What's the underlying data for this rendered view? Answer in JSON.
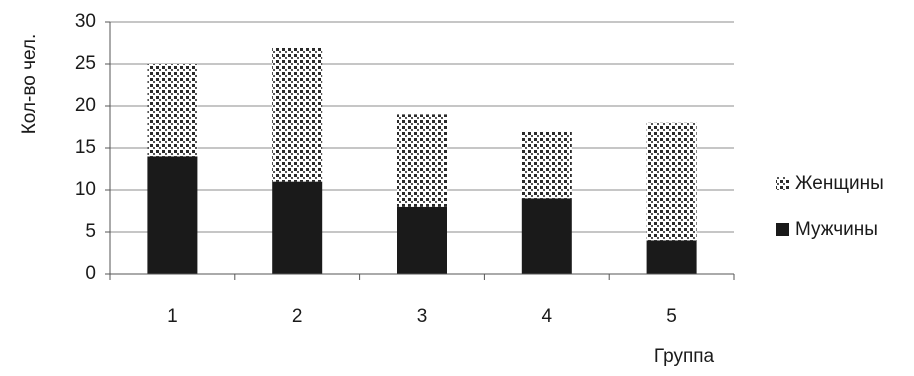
{
  "chart_data": {
    "type": "bar",
    "stacked": true,
    "categories": [
      "1",
      "2",
      "3",
      "4",
      "5"
    ],
    "series": [
      {
        "name": "Мужчины",
        "values": [
          14,
          11,
          8,
          9,
          4
        ],
        "color": "#1a1a1a",
        "fill": "solid"
      },
      {
        "name": "Женщины",
        "values": [
          11,
          16,
          11,
          8,
          14
        ],
        "color": "#1a1a1a",
        "fill": "dotted"
      }
    ],
    "title": "",
    "xlabel": "Группа",
    "ylabel": "Кол-во чел.",
    "ylim": [
      0,
      30
    ],
    "yticks": [
      0,
      5,
      10,
      15,
      20,
      25,
      30
    ],
    "grid": true,
    "legend_position": "right"
  }
}
